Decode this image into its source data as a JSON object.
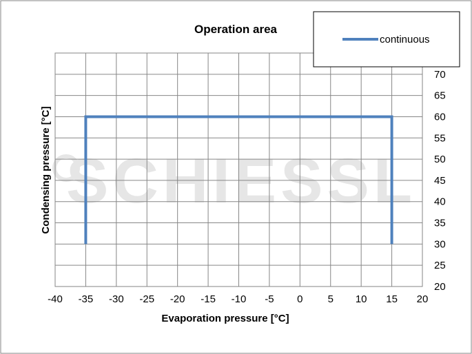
{
  "chart_data": {
    "type": "line",
    "title": "Operation area",
    "xlabel": "Evaporation pressure [°C]",
    "ylabel": "Condensing pressure [°C]",
    "xlim": [
      -40,
      20
    ],
    "ylim": [
      20,
      75
    ],
    "x_ticks": [
      -40,
      -35,
      -30,
      -25,
      -20,
      -15,
      -10,
      -5,
      0,
      5,
      10,
      15,
      20
    ],
    "y_ticks": [
      20,
      25,
      30,
      35,
      40,
      45,
      50,
      55,
      60,
      65,
      70
    ],
    "grid": true,
    "legend_position": "top-right",
    "series": [
      {
        "name": "continuous",
        "color": "#4f81bd",
        "x": [
          -35,
          -35,
          15,
          15
        ],
        "y": [
          30,
          60,
          60,
          30
        ]
      }
    ],
    "watermark": "SCHIESSL"
  }
}
